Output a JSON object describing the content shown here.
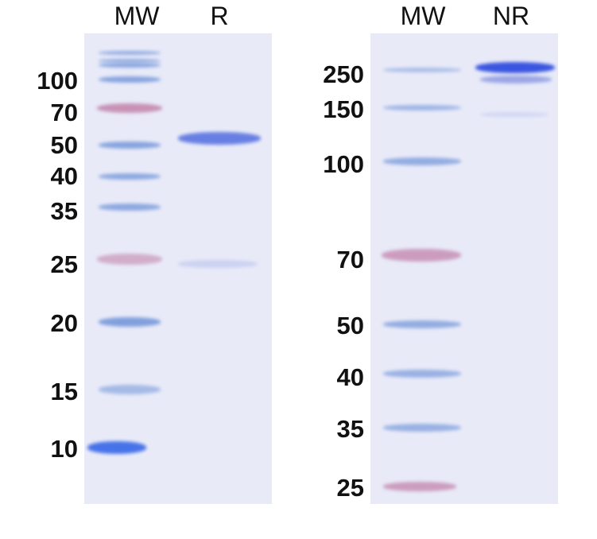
{
  "left_panel": {
    "lanes": [
      "MW",
      "R"
    ],
    "markers": [
      "100",
      "70",
      "50",
      "40",
      "35",
      "25",
      "20",
      "15",
      "10"
    ]
  },
  "right_panel": {
    "lanes": [
      "MW",
      "NR"
    ],
    "markers": [
      "250",
      "150",
      "100",
      "70",
      "50",
      "40",
      "35",
      "25"
    ]
  },
  "colors": {
    "gel": "#e8eaf8",
    "ladder_blue": "#6f93d8",
    "ladder_pink": "#c07ca6",
    "sample_blue": "#3a55e0"
  }
}
